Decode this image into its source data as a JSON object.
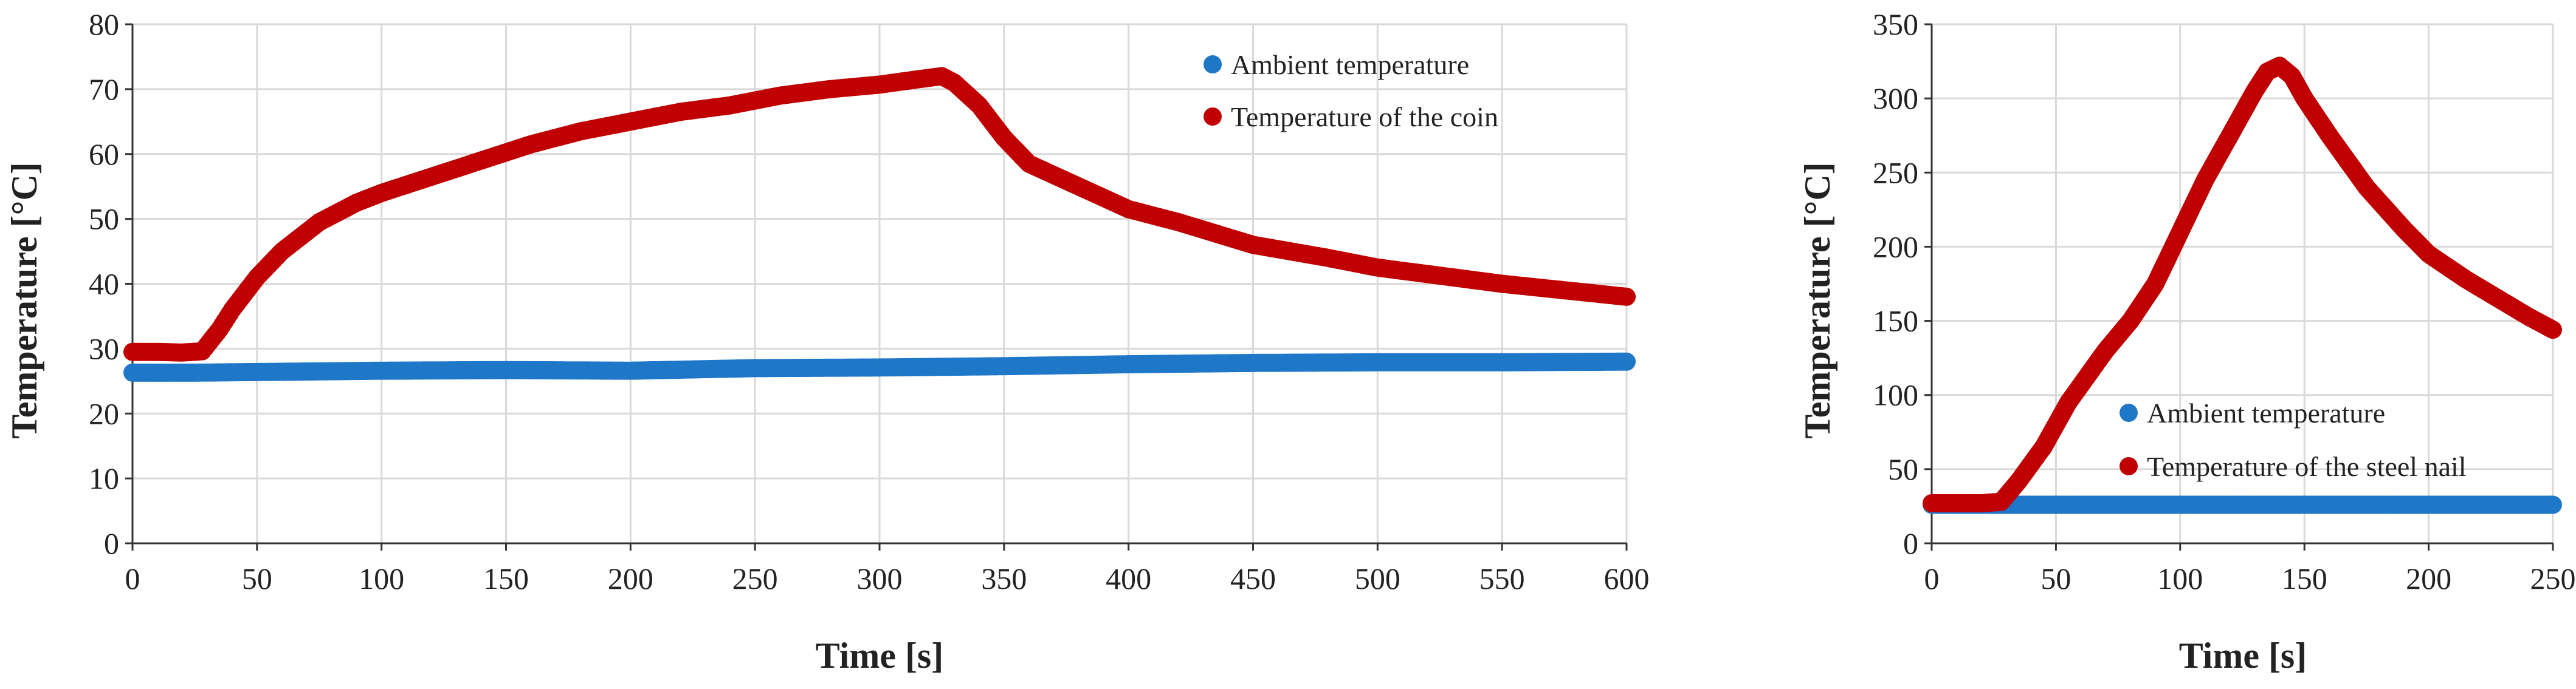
{
  "chart_data": [
    {
      "type": "scatter",
      "title": "",
      "xlabel": "Time [s]",
      "ylabel": "Temperature [°C]",
      "xlim": [
        0,
        600
      ],
      "ylim": [
        0,
        80
      ],
      "xticks": [
        0,
        50,
        100,
        150,
        200,
        250,
        300,
        350,
        400,
        450,
        500,
        550,
        600
      ],
      "yticks": [
        0,
        10,
        20,
        30,
        40,
        50,
        60,
        70,
        80
      ],
      "grid": true,
      "legend_position": "top-right",
      "series": [
        {
          "name": "Ambient temperature",
          "color": "#1f77c8",
          "x": [
            0,
            25,
            50,
            100,
            150,
            200,
            250,
            300,
            350,
            400,
            450,
            500,
            550,
            600
          ],
          "y": [
            26.3,
            26.3,
            26.4,
            26.6,
            26.7,
            26.6,
            27.0,
            27.1,
            27.3,
            27.6,
            27.8,
            27.9,
            27.9,
            28.0
          ]
        },
        {
          "name": "Temperature of the coin",
          "color": "#c00000",
          "x": [
            0,
            10,
            20,
            28,
            35,
            40,
            50,
            60,
            75,
            90,
            100,
            120,
            140,
            160,
            180,
            200,
            220,
            240,
            260,
            280,
            300,
            315,
            325,
            330,
            340,
            350,
            360,
            380,
            400,
            420,
            450,
            480,
            500,
            520,
            550,
            575,
            600
          ],
          "y": [
            29.5,
            29.5,
            29.4,
            29.6,
            33,
            36,
            41,
            45,
            49.5,
            52.5,
            54,
            56.5,
            59,
            61.5,
            63.5,
            65,
            66.5,
            67.5,
            69,
            70,
            70.7,
            71.5,
            72,
            71,
            67.5,
            62.5,
            58.5,
            55,
            51.5,
            49.5,
            46,
            44,
            42.5,
            41.5,
            40,
            39,
            38
          ]
        }
      ]
    },
    {
      "type": "scatter",
      "title": "",
      "xlabel": "Time [s]",
      "ylabel": "Temperature [°C]",
      "xlim": [
        0,
        250
      ],
      "ylim": [
        0,
        350
      ],
      "xticks": [
        0,
        50,
        100,
        150,
        200,
        250
      ],
      "yticks": [
        0,
        50,
        100,
        150,
        200,
        250,
        300,
        350
      ],
      "grid": true,
      "legend_position": "bottom-right",
      "series": [
        {
          "name": "Ambient temperature",
          "color": "#1f77c8",
          "x": [
            0,
            25,
            50,
            100,
            150,
            200,
            250
          ],
          "y": [
            26,
            26,
            26,
            26,
            26,
            26,
            26
          ]
        },
        {
          "name": "Temperature of the steel nail",
          "color": "#c00000",
          "x": [
            0,
            10,
            20,
            28,
            35,
            45,
            55,
            70,
            80,
            90,
            100,
            110,
            120,
            130,
            135,
            140,
            145,
            150,
            160,
            175,
            190,
            200,
            215,
            230,
            240,
            250
          ],
          "y": [
            27,
            27,
            27,
            28,
            42,
            65,
            95,
            130,
            150,
            175,
            210,
            245,
            275,
            305,
            318,
            322,
            315,
            300,
            275,
            240,
            212,
            195,
            178,
            163,
            153,
            144
          ]
        }
      ]
    }
  ]
}
